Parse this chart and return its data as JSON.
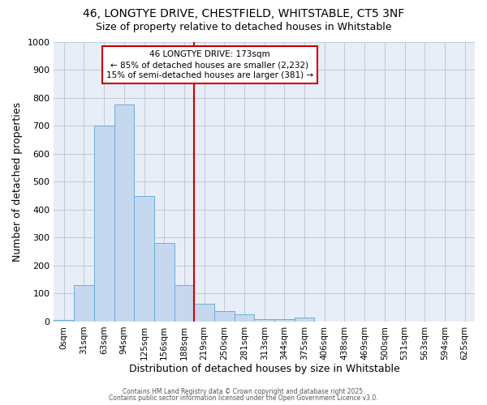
{
  "title_line1": "46, LONGTYE DRIVE, CHESTFIELD, WHITSTABLE, CT5 3NF",
  "title_line2": "Size of property relative to detached houses in Whitstable",
  "xlabel": "Distribution of detached houses by size in Whitstable",
  "ylabel": "Number of detached properties",
  "bar_labels": [
    "0sqm",
    "31sqm",
    "63sqm",
    "94sqm",
    "125sqm",
    "156sqm",
    "188sqm",
    "219sqm",
    "250sqm",
    "281sqm",
    "313sqm",
    "344sqm",
    "375sqm",
    "406sqm",
    "438sqm",
    "469sqm",
    "500sqm",
    "531sqm",
    "563sqm",
    "594sqm",
    "625sqm"
  ],
  "bar_values": [
    5,
    130,
    700,
    775,
    450,
    280,
    130,
    65,
    38,
    25,
    10,
    10,
    15,
    0,
    0,
    0,
    0,
    0,
    0,
    0,
    0
  ],
  "bar_color": "#c5d8f0",
  "bar_edge_color": "#6baed6",
  "bar_width": 1.0,
  "vline_x": 6.5,
  "vline_color": "#cc0000",
  "annotation_box_text": "46 LONGTYE DRIVE: 173sqm\n← 85% of detached houses are smaller (2,232)\n15% of semi-detached houses are larger (381) →",
  "ylim": [
    0,
    1000
  ],
  "yticks": [
    0,
    100,
    200,
    300,
    400,
    500,
    600,
    700,
    800,
    900,
    1000
  ],
  "grid_color": "#c0c8d8",
  "background_color": "#ffffff",
  "plot_bg_color": "#e8eef8",
  "footer_line1": "Contains HM Land Registry data © Crown copyright and database right 2025.",
  "footer_line2": "Contains public sector information licensed under the Open Government Licence v3.0."
}
